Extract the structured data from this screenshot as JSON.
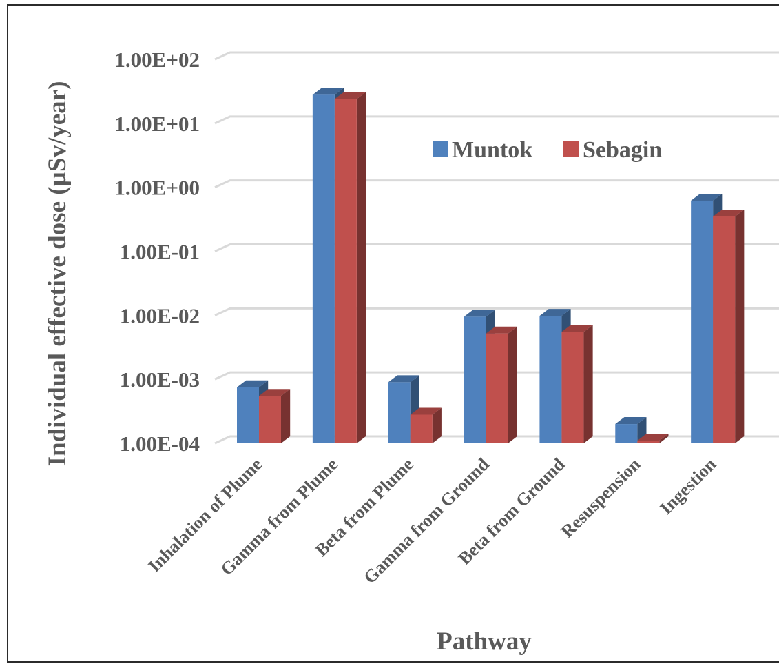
{
  "chart_data": {
    "type": "bar",
    "title": "",
    "xlabel": "Pathway",
    "ylabel": "Individual effective dose (µSv/year)",
    "yscale": "log",
    "ylim": [
      0.0001,
      100
    ],
    "yticks": [
      "1.00E-04",
      "1.00E-03",
      "1.00E-02",
      "1.00E-01",
      "1.00E+00",
      "1.00E+01",
      "1.00E+02"
    ],
    "grid": true,
    "legend_position": "top-right",
    "categories": [
      "Inhalation of Plume",
      "Gamma from Plume",
      "Beta from Plume",
      "Gamma from Ground",
      "Beta from Ground",
      "Resuspension",
      "Ingestion"
    ],
    "series": [
      {
        "name": "Muntok",
        "color": "#4f81bd",
        "values": [
          0.00075,
          28,
          0.0009,
          0.0095,
          0.0098,
          0.0002,
          0.62
        ]
      },
      {
        "name": "Sebagin",
        "color": "#c0504d",
        "values": [
          0.00055,
          24,
          0.00028,
          0.0052,
          0.0055,
          0.00011,
          0.35
        ]
      }
    ]
  }
}
